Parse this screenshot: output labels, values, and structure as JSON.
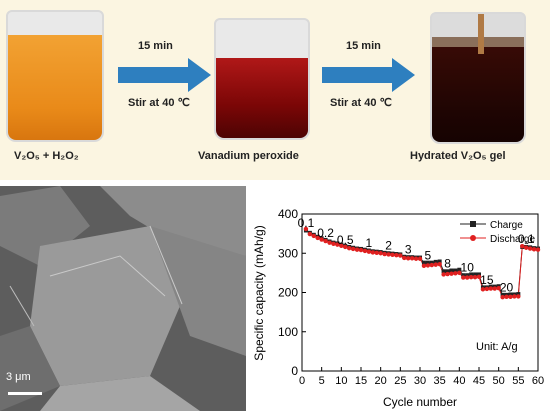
{
  "process": {
    "step1_label": "V₂O₅ + H₂O₂",
    "step2_label": "Vanadium peroxide",
    "step3_label": "Hydrated V₂O₅ gel",
    "arrow1_time": "15 min",
    "arrow1_condition": "Stir at 40 ℃",
    "arrow2_time": "15 min",
    "arrow2_condition": "Stir at 40 ℃"
  },
  "sem": {
    "scale_label": "3 μm"
  },
  "colors": {
    "charge": "#222222",
    "discharge": "#e02020",
    "arrow": "#2e7fbf",
    "panel": "#fbf5e1"
  },
  "chart_data": {
    "type": "line",
    "xlabel": "Cycle number",
    "ylabel": "Specific capacity (mAh/g)",
    "xlim": [
      0,
      60
    ],
    "ylim": [
      0,
      400
    ],
    "xticks": [
      0,
      5,
      10,
      15,
      20,
      25,
      30,
      35,
      40,
      45,
      50,
      55,
      60
    ],
    "yticks": [
      0,
      100,
      200,
      300,
      400
    ],
    "unit_note": "Unit: A/g",
    "legend_position": "top-right",
    "x": [
      1,
      2,
      3,
      4,
      5,
      6,
      7,
      8,
      9,
      10,
      11,
      12,
      13,
      14,
      15,
      16,
      17,
      18,
      19,
      20,
      21,
      22,
      23,
      24,
      25,
      26,
      27,
      28,
      29,
      30,
      31,
      32,
      33,
      34,
      35,
      36,
      37,
      38,
      39,
      40,
      41,
      42,
      43,
      44,
      45,
      46,
      47,
      48,
      49,
      50,
      51,
      52,
      53,
      54,
      55,
      56,
      57,
      58,
      59,
      60
    ],
    "series": [
      {
        "name": "Charge",
        "color": "#222222",
        "marker": "square",
        "values": [
          358,
          352,
          347,
          342,
          338,
          334,
          330,
          327,
          325,
          322,
          319,
          316,
          314,
          312,
          311,
          309,
          307,
          305,
          304,
          303,
          301,
          300,
          299,
          298,
          297,
          291,
          290,
          290,
          289,
          289,
          276,
          276,
          276,
          278,
          279,
          254,
          254,
          256,
          256,
          258,
          244,
          244,
          246,
          246,
          246,
          213,
          213,
          215,
          215,
          216,
          194,
          194,
          195,
          195,
          196,
          316,
          316,
          315,
          313,
          312
        ]
      },
      {
        "name": "Discharge",
        "color": "#e02020",
        "marker": "circle",
        "values": [
          362,
          349,
          344,
          339,
          335,
          331,
          327,
          324,
          322,
          319,
          316,
          313,
          311,
          309,
          308,
          306,
          304,
          302,
          301,
          300,
          298,
          297,
          296,
          295,
          294,
          288,
          287,
          287,
          286,
          286,
          268,
          269,
          270,
          271,
          272,
          246,
          247,
          248,
          249,
          250,
          238,
          238,
          239,
          239,
          240,
          208,
          209,
          210,
          210,
          211,
          188,
          189,
          189,
          190,
          190,
          318,
          314,
          312,
          310,
          309
        ]
      }
    ],
    "annotations": [
      {
        "text": "0.1",
        "x": 1,
        "y": 367
      },
      {
        "text": "0.2",
        "x": 6,
        "y": 342
      },
      {
        "text": "0.5",
        "x": 11,
        "y": 323
      },
      {
        "text": "1",
        "x": 17,
        "y": 316
      },
      {
        "text": "2",
        "x": 22,
        "y": 310
      },
      {
        "text": "3",
        "x": 27,
        "y": 300
      },
      {
        "text": "5",
        "x": 32,
        "y": 284
      },
      {
        "text": "8",
        "x": 37,
        "y": 264
      },
      {
        "text": "10",
        "x": 42,
        "y": 254
      },
      {
        "text": "15",
        "x": 47,
        "y": 222
      },
      {
        "text": "20",
        "x": 52,
        "y": 202
      },
      {
        "text": "0.1",
        "x": 57,
        "y": 326
      }
    ]
  }
}
